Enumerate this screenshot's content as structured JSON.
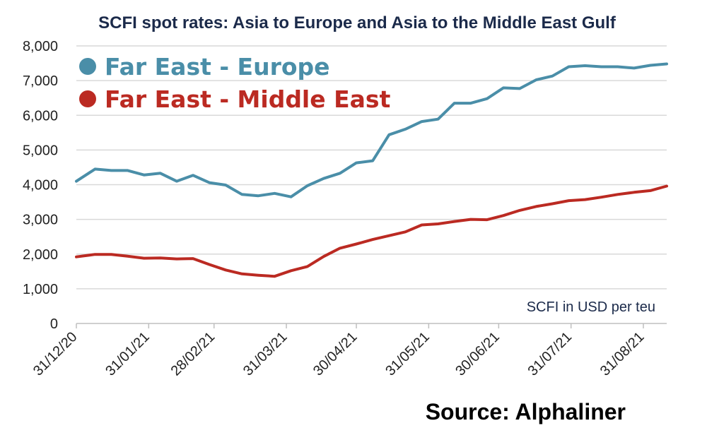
{
  "chart_data": {
    "type": "line",
    "title": "SCFI spot rates: Asia to Europe and Asia to the Middle East Gulf",
    "unit_note": "SCFI in USD per teu",
    "source": "Source: Alphaliner",
    "ylim": [
      0,
      8000
    ],
    "yticks": [
      0,
      1000,
      2000,
      3000,
      4000,
      5000,
      6000,
      7000,
      8000
    ],
    "ytick_labels": [
      "0",
      "1,000",
      "2,000",
      "3,000",
      "4,000",
      "5,000",
      "6,000",
      "7,000",
      "8,000"
    ],
    "xticks": [
      "31/12/20",
      "31/01/21",
      "28/02/21",
      "31/03/21",
      "30/04/21",
      "31/05/21",
      "30/06/21",
      "31/07/21",
      "31/08/21"
    ],
    "xtick_dates": [
      "2020-12-31",
      "2021-01-31",
      "2021-02-28",
      "2021-03-31",
      "2021-04-30",
      "2021-05-31",
      "2021-06-30",
      "2021-07-31",
      "2021-08-31"
    ],
    "grid": "horizontal",
    "legend_position": "top-left",
    "x": [
      "2020-12-31",
      "2021-01-08",
      "2021-01-15",
      "2021-01-22",
      "2021-01-29",
      "2021-02-05",
      "2021-02-12",
      "2021-02-19",
      "2021-02-26",
      "2021-03-05",
      "2021-03-12",
      "2021-03-19",
      "2021-03-26",
      "2021-04-02",
      "2021-04-09",
      "2021-04-16",
      "2021-04-23",
      "2021-04-30",
      "2021-05-07",
      "2021-05-14",
      "2021-05-21",
      "2021-05-28",
      "2021-06-04",
      "2021-06-11",
      "2021-06-18",
      "2021-06-25",
      "2021-07-02",
      "2021-07-09",
      "2021-07-16",
      "2021-07-23",
      "2021-07-30",
      "2021-08-06",
      "2021-08-13",
      "2021-08-20",
      "2021-08-27",
      "2021-09-03",
      "2021-09-10"
    ],
    "series": [
      {
        "name": "Far East - Europe",
        "color": "#4a8ea8",
        "values": [
          4100,
          4450,
          4410,
          4410,
          4280,
          4330,
          4100,
          4270,
          4060,
          3990,
          3720,
          3680,
          3750,
          3650,
          3970,
          4180,
          4330,
          4630,
          4690,
          5440,
          5600,
          5820,
          5890,
          6350,
          6350,
          6480,
          6790,
          6770,
          7020,
          7130,
          7400,
          7430,
          7400,
          7400,
          7360,
          7440,
          7480
        ]
      },
      {
        "name": "Far East - Middle East",
        "color": "#bb2a22",
        "values": [
          1920,
          1990,
          1990,
          1940,
          1880,
          1890,
          1860,
          1870,
          1700,
          1540,
          1430,
          1390,
          1360,
          1520,
          1640,
          1930,
          2170,
          2290,
          2420,
          2530,
          2640,
          2840,
          2870,
          2940,
          3000,
          2990,
          3110,
          3260,
          3370,
          3450,
          3540,
          3570,
          3640,
          3720,
          3780,
          3830,
          3960
        ]
      }
    ]
  }
}
